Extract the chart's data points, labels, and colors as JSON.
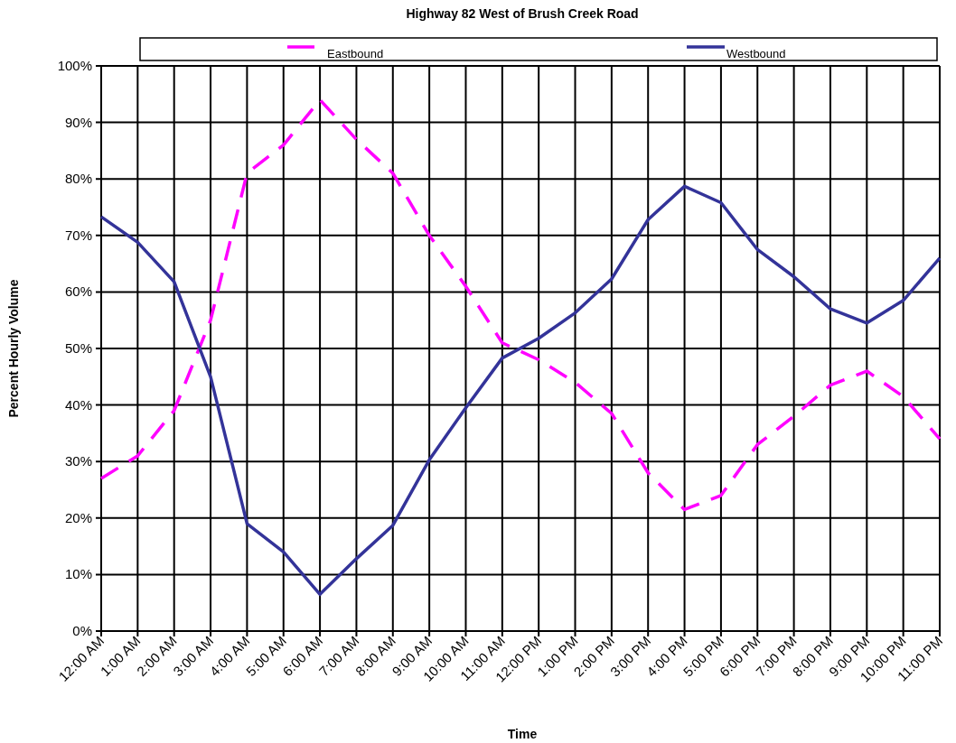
{
  "chart_data": {
    "type": "line",
    "title": "Highway 82 West of Brush Creek Road",
    "xlabel": "Time",
    "ylabel": "Percent Hourly Volume",
    "categories": [
      "12:00 AM",
      "1:00 AM",
      "2:00 AM",
      "3:00 AM",
      "4:00 AM",
      "5:00 AM",
      "6:00 AM",
      "7:00 AM",
      "8:00 AM",
      "9:00 AM",
      "10:00 AM",
      "11:00 AM",
      "12:00 PM",
      "1:00 PM",
      "2:00 PM",
      "3:00 PM",
      "4:00 PM",
      "5:00 PM",
      "6:00 PM",
      "7:00 PM",
      "8:00 PM",
      "9:00 PM",
      "10:00 PM",
      "11:00 PM"
    ],
    "series": [
      {
        "name": "Eastbound",
        "color": "#ff00ff",
        "line_style": "dashed",
        "values": [
          27,
          31,
          39,
          55,
          81,
          86,
          94,
          87,
          81,
          70,
          61,
          51,
          48,
          44,
          38.5,
          28,
          21.5,
          24,
          33,
          38,
          43.5,
          46,
          41.5,
          34
        ]
      },
      {
        "name": "Westbound",
        "color": "#333399",
        "line_style": "solid",
        "values": [
          73.3,
          68.8,
          61.8,
          45,
          19,
          14,
          6.5,
          12.8,
          18.7,
          30.3,
          39.5,
          48.3,
          51.8,
          56.3,
          62.3,
          72.8,
          78.7,
          75.8,
          67.5,
          62.7,
          57,
          54.5,
          58.5,
          66
        ]
      }
    ],
    "ylim": [
      0,
      100
    ],
    "yticks": [
      {
        "value": 0,
        "label": "0%"
      },
      {
        "value": 10,
        "label": "10%"
      },
      {
        "value": 20,
        "label": "20%"
      },
      {
        "value": 30,
        "label": "30%"
      },
      {
        "value": 40,
        "label": "40%"
      },
      {
        "value": 50,
        "label": "50%"
      },
      {
        "value": 60,
        "label": "60%"
      },
      {
        "value": 70,
        "label": "70%"
      },
      {
        "value": 80,
        "label": "80%"
      },
      {
        "value": 90,
        "label": "90%"
      },
      {
        "value": 100,
        "label": "100%"
      }
    ],
    "grid": true,
    "legend": "top"
  }
}
